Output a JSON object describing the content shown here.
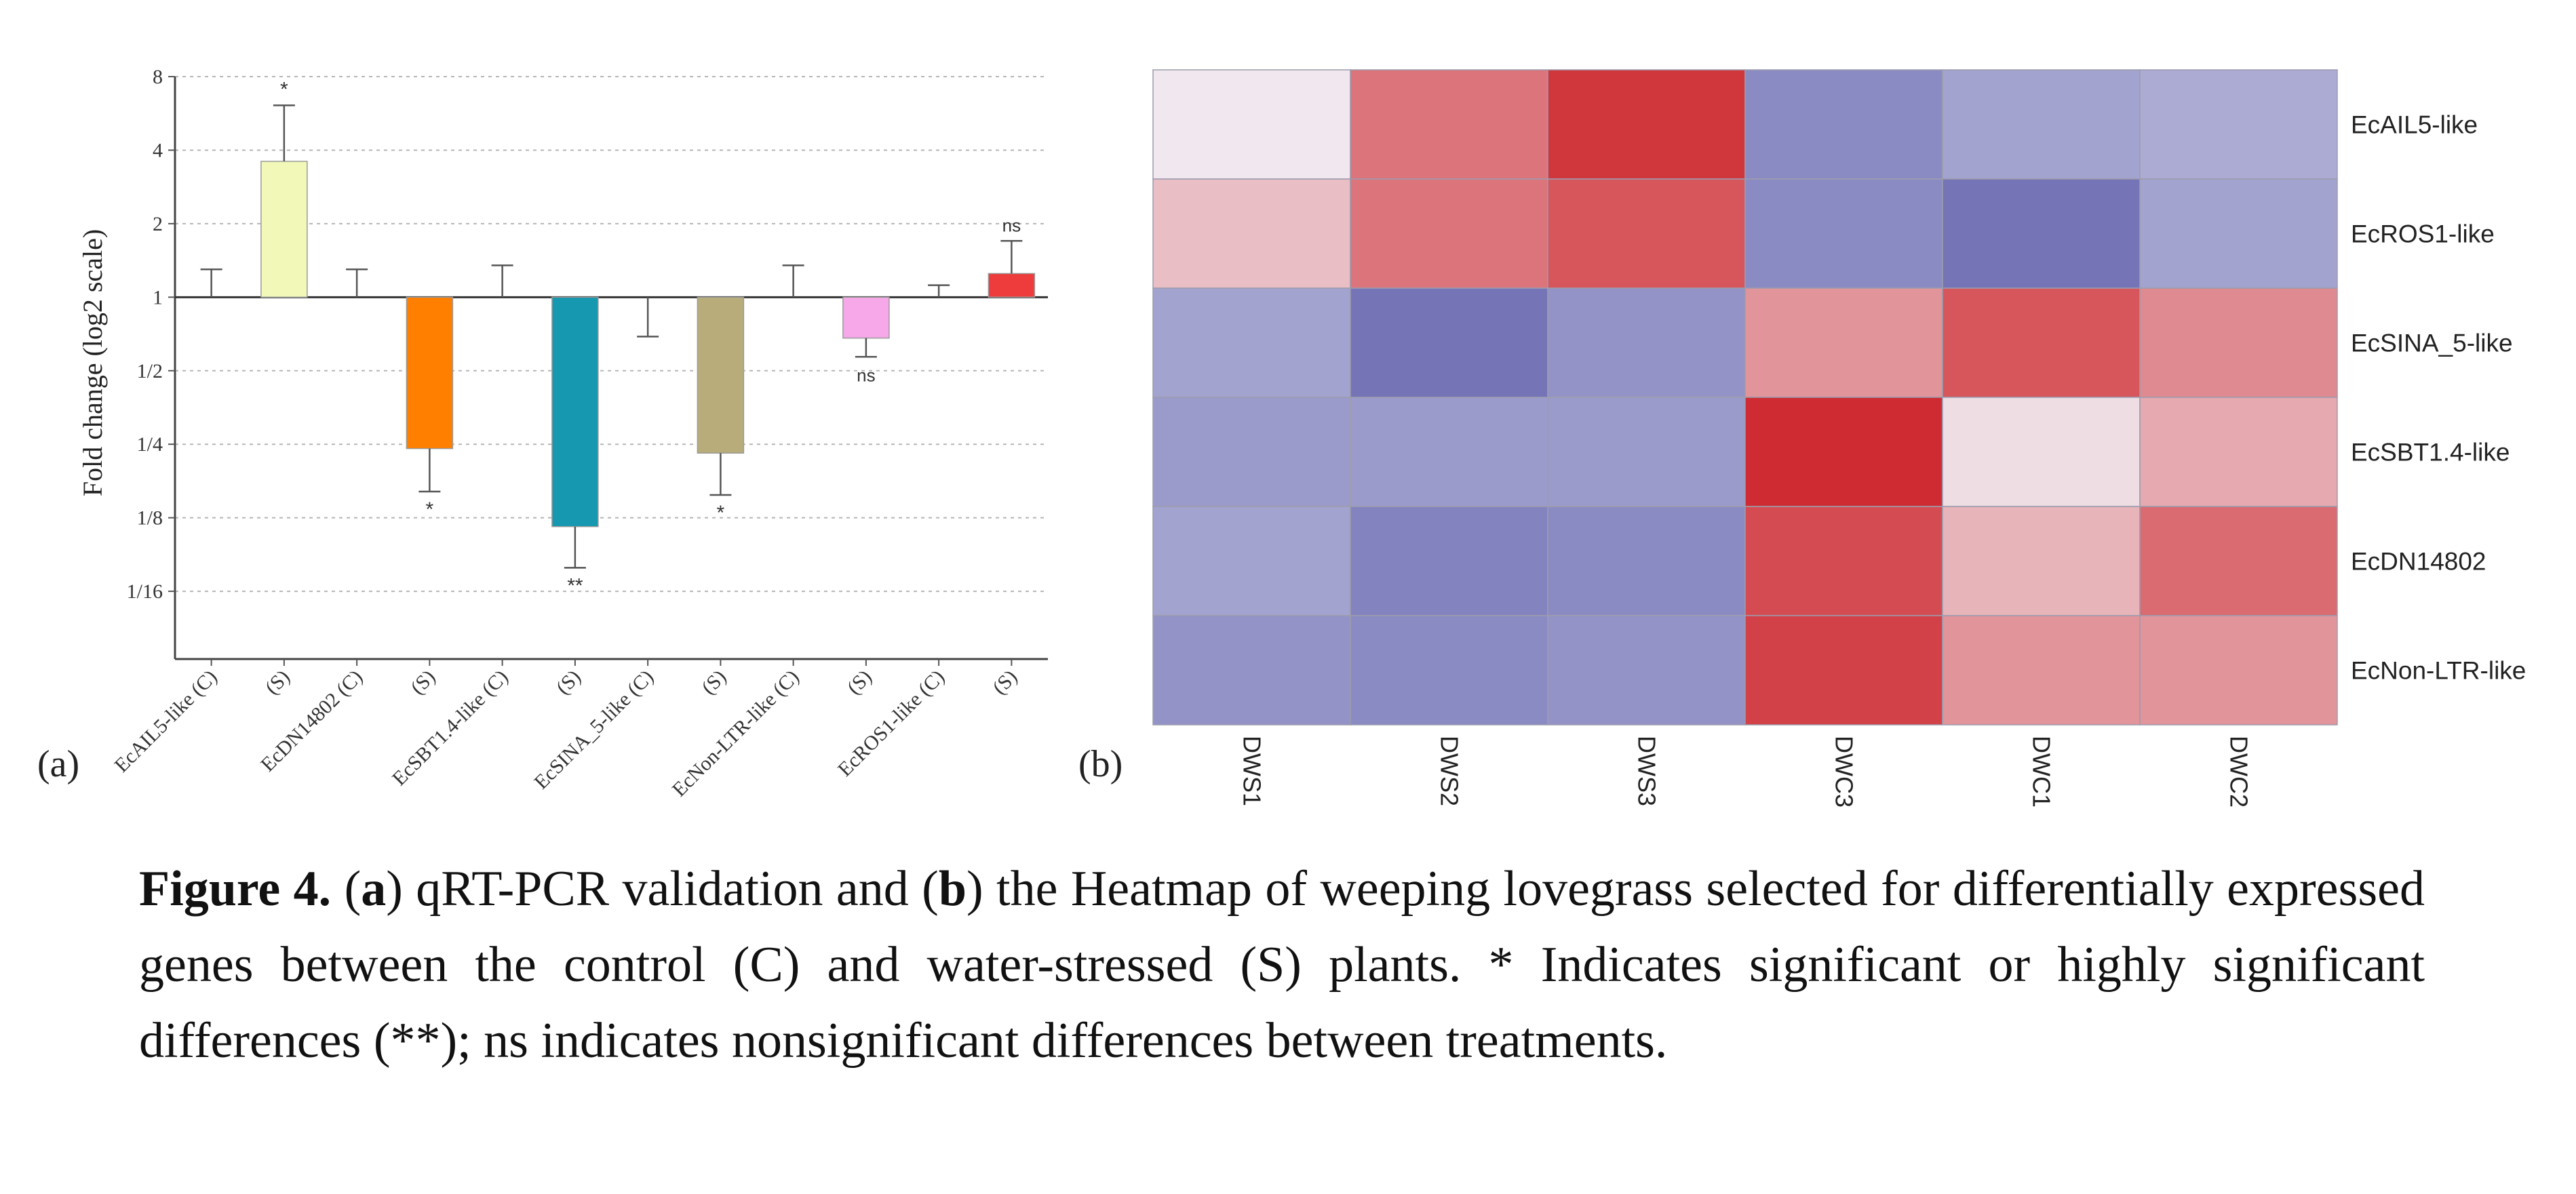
{
  "chart_data": [
    {
      "type": "bar",
      "panel": "(a)",
      "ylabel": "Fold change (log2 scale)",
      "yscale": "log2",
      "yticks": [
        "8",
        "4",
        "2",
        "1",
        "1/2",
        "1/4",
        "1/8",
        "1/16"
      ],
      "ytick_values": [
        8,
        4,
        2,
        1,
        0.5,
        0.25,
        0.125,
        0.0625
      ],
      "ylim": [
        0.033,
        8
      ],
      "grid": true,
      "categories": [
        "EcAIL5-like (C)",
        "(S)",
        "EcDN14802 (C)",
        "(S)",
        "EcSBT1.4-like (C)",
        "(S)",
        "EcSINA_5-like (C)",
        "(S)",
        "EcNon-LTR-like (C)",
        "(S)",
        "EcROS1-like (C)",
        "(S)"
      ],
      "values": [
        1.0,
        3.6,
        1.0,
        0.24,
        1.0,
        0.115,
        1.0,
        0.23,
        1.0,
        0.68,
        1.0,
        1.25
      ],
      "error_tips": [
        1.3,
        6.1,
        1.3,
        0.16,
        1.35,
        0.078,
        0.69,
        0.155,
        1.35,
        0.57,
        1.12,
        1.7
      ],
      "colors": [
        "#ffffff",
        "#f2f9b8",
        "#ffffff",
        "#ff7f00",
        "#ffffff",
        "#1598b0",
        "#ffffff",
        "#b8ad7a",
        "#ffffff",
        "#f6a8e8",
        "#ffffff",
        "#ee3b3b"
      ],
      "significance": [
        "",
        "*",
        "",
        "*",
        "",
        "**",
        "",
        "*",
        "",
        "ns",
        "",
        "ns"
      ]
    },
    {
      "type": "heatmap",
      "panel": "(b)",
      "rows": [
        "EcAIL5-like",
        "EcROS1-like",
        "EcSINA_5-like",
        "EcSBT1.4-like",
        "EcDN14802",
        "EcNon-LTR-like"
      ],
      "columns": [
        "DWS1",
        "DWS2",
        "DWS3",
        "DWC3",
        "DWC1",
        "DWC2"
      ],
      "scale": "blue (low) - white - red (high)",
      "values": [
        [
          0.05,
          0.6,
          0.9,
          -0.65,
          -0.5,
          -0.45
        ],
        [
          0.25,
          0.6,
          0.75,
          -0.65,
          -0.8,
          -0.5
        ],
        [
          -0.5,
          -0.8,
          -0.6,
          0.45,
          0.75,
          0.5
        ],
        [
          -0.55,
          -0.55,
          -0.55,
          0.95,
          0.1,
          0.35
        ],
        [
          -0.5,
          -0.7,
          -0.65,
          0.8,
          0.3,
          0.65
        ],
        [
          -0.6,
          -0.65,
          -0.6,
          0.85,
          0.45,
          0.45
        ]
      ]
    }
  ],
  "caption": {
    "figure_label": "Figure 4.",
    "open_a": " (",
    "a": "a",
    "mid_a": ") qRT-PCR validation and (",
    "b": "b",
    "rest": ") the Heatmap of weeping lovegrass selected for differentially expressed genes between the control (C) and water-stressed (S) plants. * Indicates significant or highly significant differences (**); ns indicates nonsignificant differences between treatments."
  }
}
